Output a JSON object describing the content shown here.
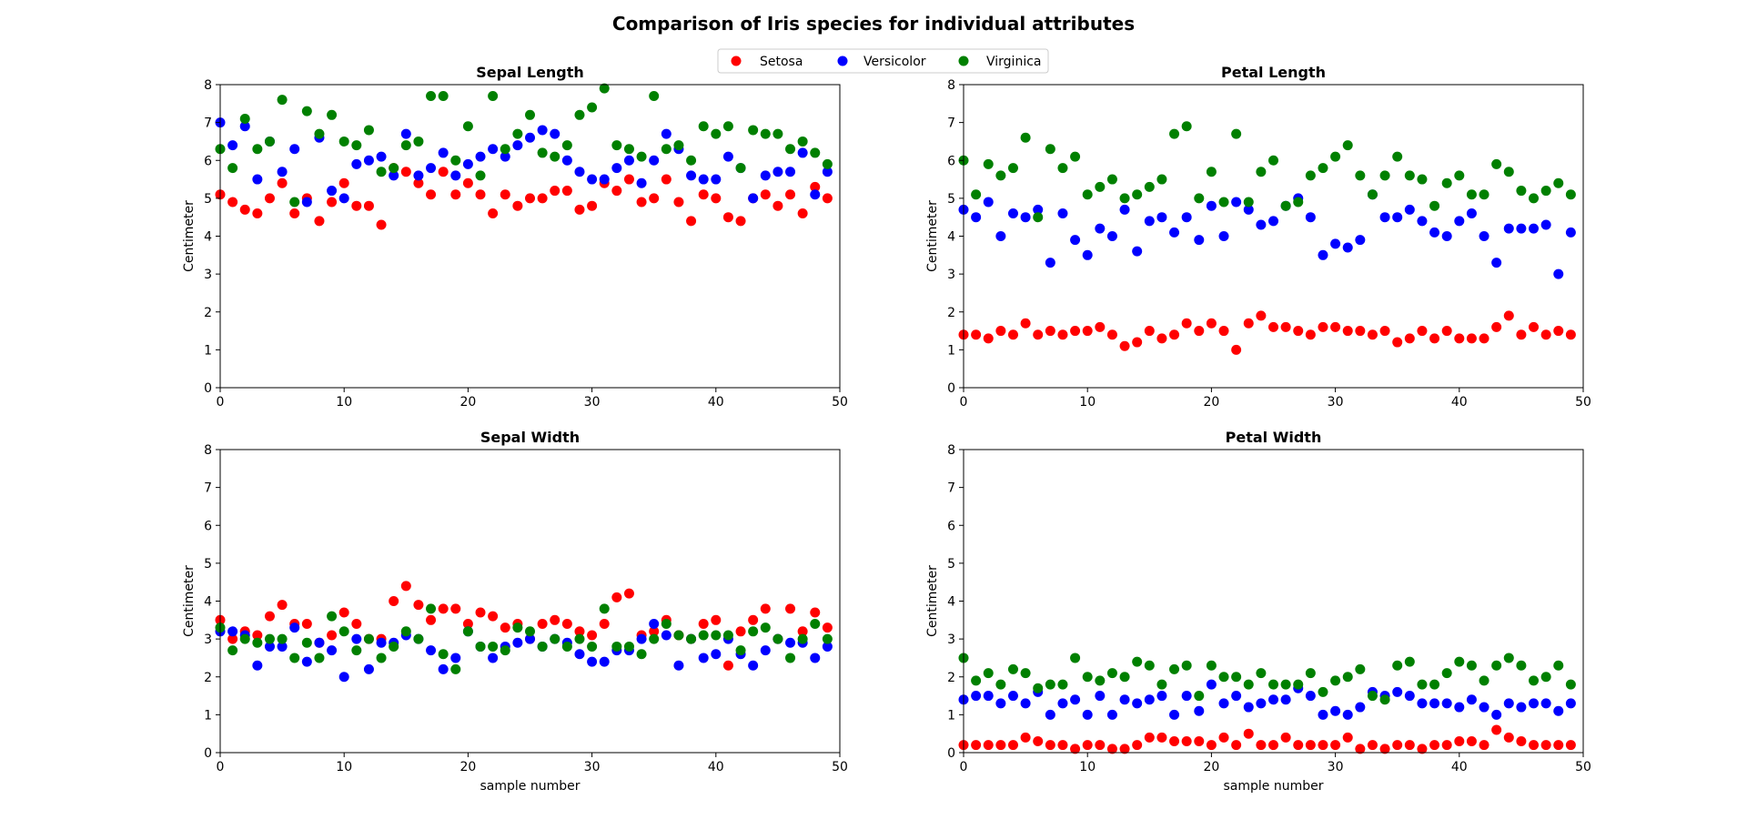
{
  "figure": {
    "title": "Comparison of Iris species for individual attributes"
  },
  "legend": {
    "placement": "top-center",
    "entries": [
      {
        "label": "Setosa",
        "color": "#ff0000"
      },
      {
        "label": "Versicolor",
        "color": "#0000ff"
      },
      {
        "label": "Virginica",
        "color": "#008000"
      }
    ]
  },
  "chart_data": [
    {
      "type": "scatter",
      "title": "Sepal Length",
      "xlabel": "",
      "ylabel": "Centimeter",
      "xlim": [
        0,
        50
      ],
      "ylim": [
        0,
        8
      ],
      "xticks": [
        0,
        10,
        20,
        30,
        40,
        50
      ],
      "yticks": [
        0,
        1,
        2,
        3,
        4,
        5,
        6,
        7,
        8
      ],
      "grid": false,
      "series": [
        {
          "name": "Setosa",
          "color": "#ff0000",
          "values": [
            5.1,
            4.9,
            4.7,
            4.6,
            5.0,
            5.4,
            4.6,
            5.0,
            4.4,
            4.9,
            5.4,
            4.8,
            4.8,
            4.3,
            5.8,
            5.7,
            5.4,
            5.1,
            5.7,
            5.1,
            5.4,
            5.1,
            4.6,
            5.1,
            4.8,
            5.0,
            5.0,
            5.2,
            5.2,
            4.7,
            4.8,
            5.4,
            5.2,
            5.5,
            4.9,
            5.0,
            5.5,
            4.9,
            4.4,
            5.1,
            5.0,
            4.5,
            4.4,
            5.0,
            5.1,
            4.8,
            5.1,
            4.6,
            5.3,
            5.0
          ]
        },
        {
          "name": "Versicolor",
          "color": "#0000ff",
          "values": [
            7.0,
            6.4,
            6.9,
            5.5,
            6.5,
            5.7,
            6.3,
            4.9,
            6.6,
            5.2,
            5.0,
            5.9,
            6.0,
            6.1,
            5.6,
            6.7,
            5.6,
            5.8,
            6.2,
            5.6,
            5.9,
            6.1,
            6.3,
            6.1,
            6.4,
            6.6,
            6.8,
            6.7,
            6.0,
            5.7,
            5.5,
            5.5,
            5.8,
            6.0,
            5.4,
            6.0,
            6.7,
            6.3,
            5.6,
            5.5,
            5.5,
            6.1,
            5.8,
            5.0,
            5.6,
            5.7,
            5.7,
            6.2,
            5.1,
            5.7
          ]
        },
        {
          "name": "Virginica",
          "color": "#008000",
          "values": [
            6.3,
            5.8,
            7.1,
            6.3,
            6.5,
            7.6,
            4.9,
            7.3,
            6.7,
            7.2,
            6.5,
            6.4,
            6.8,
            5.7,
            5.8,
            6.4,
            6.5,
            7.7,
            7.7,
            6.0,
            6.9,
            5.6,
            7.7,
            6.3,
            6.7,
            7.2,
            6.2,
            6.1,
            6.4,
            7.2,
            7.4,
            7.9,
            6.4,
            6.3,
            6.1,
            7.7,
            6.3,
            6.4,
            6.0,
            6.9,
            6.7,
            6.9,
            5.8,
            6.8,
            6.7,
            6.7,
            6.3,
            6.5,
            6.2,
            5.9
          ]
        }
      ]
    },
    {
      "type": "scatter",
      "title": "Petal Length",
      "xlabel": "",
      "ylabel": "Centimeter",
      "xlim": [
        0,
        50
      ],
      "ylim": [
        0,
        8
      ],
      "xticks": [
        0,
        10,
        20,
        30,
        40,
        50
      ],
      "yticks": [
        0,
        1,
        2,
        3,
        4,
        5,
        6,
        7,
        8
      ],
      "grid": false,
      "series": [
        {
          "name": "Setosa",
          "color": "#ff0000",
          "values": [
            1.4,
            1.4,
            1.3,
            1.5,
            1.4,
            1.7,
            1.4,
            1.5,
            1.4,
            1.5,
            1.5,
            1.6,
            1.4,
            1.1,
            1.2,
            1.5,
            1.3,
            1.4,
            1.7,
            1.5,
            1.7,
            1.5,
            1.0,
            1.7,
            1.9,
            1.6,
            1.6,
            1.5,
            1.4,
            1.6,
            1.6,
            1.5,
            1.5,
            1.4,
            1.5,
            1.2,
            1.3,
            1.5,
            1.3,
            1.5,
            1.3,
            1.3,
            1.3,
            1.6,
            1.9,
            1.4,
            1.6,
            1.4,
            1.5,
            1.4
          ]
        },
        {
          "name": "Versicolor",
          "color": "#0000ff",
          "values": [
            4.7,
            4.5,
            4.9,
            4.0,
            4.6,
            4.5,
            4.7,
            3.3,
            4.6,
            3.9,
            3.5,
            4.2,
            4.0,
            4.7,
            3.6,
            4.4,
            4.5,
            4.1,
            4.5,
            3.9,
            4.8,
            4.0,
            4.9,
            4.7,
            4.3,
            4.4,
            4.8,
            5.0,
            4.5,
            3.5,
            3.8,
            3.7,
            3.9,
            5.1,
            4.5,
            4.5,
            4.7,
            4.4,
            4.1,
            4.0,
            4.4,
            4.6,
            4.0,
            3.3,
            4.2,
            4.2,
            4.2,
            4.3,
            3.0,
            4.1
          ]
        },
        {
          "name": "Virginica",
          "color": "#008000",
          "values": [
            6.0,
            5.1,
            5.9,
            5.6,
            5.8,
            6.6,
            4.5,
            6.3,
            5.8,
            6.1,
            5.1,
            5.3,
            5.5,
            5.0,
            5.1,
            5.3,
            5.5,
            6.7,
            6.9,
            5.0,
            5.7,
            4.9,
            6.7,
            4.9,
            5.7,
            6.0,
            4.8,
            4.9,
            5.6,
            5.8,
            6.1,
            6.4,
            5.6,
            5.1,
            5.6,
            6.1,
            5.6,
            5.5,
            4.8,
            5.4,
            5.6,
            5.1,
            5.1,
            5.9,
            5.7,
            5.2,
            5.0,
            5.2,
            5.4,
            5.1
          ]
        }
      ]
    },
    {
      "type": "scatter",
      "title": "Sepal Width",
      "xlabel": "sample number",
      "ylabel": "Centimeter",
      "xlim": [
        0,
        50
      ],
      "ylim": [
        0,
        8
      ],
      "xticks": [
        0,
        10,
        20,
        30,
        40,
        50
      ],
      "yticks": [
        0,
        1,
        2,
        3,
        4,
        5,
        6,
        7,
        8
      ],
      "grid": false,
      "series": [
        {
          "name": "Setosa",
          "color": "#ff0000",
          "values": [
            3.5,
            3.0,
            3.2,
            3.1,
            3.6,
            3.9,
            3.4,
            3.4,
            2.9,
            3.1,
            3.7,
            3.4,
            3.0,
            3.0,
            4.0,
            4.4,
            3.9,
            3.5,
            3.8,
            3.8,
            3.4,
            3.7,
            3.6,
            3.3,
            3.4,
            3.0,
            3.4,
            3.5,
            3.4,
            3.2,
            3.1,
            3.4,
            4.1,
            4.2,
            3.1,
            3.2,
            3.5,
            3.1,
            3.0,
            3.4,
            3.5,
            2.3,
            3.2,
            3.5,
            3.8,
            3.0,
            3.8,
            3.2,
            3.7,
            3.3
          ]
        },
        {
          "name": "Versicolor",
          "color": "#0000ff",
          "values": [
            3.2,
            3.2,
            3.1,
            2.3,
            2.8,
            2.8,
            3.3,
            2.4,
            2.9,
            2.7,
            2.0,
            3.0,
            2.2,
            2.9,
            2.9,
            3.1,
            3.0,
            2.7,
            2.2,
            2.5,
            3.2,
            2.8,
            2.5,
            2.8,
            2.9,
            3.0,
            2.8,
            3.0,
            2.9,
            2.6,
            2.4,
            2.4,
            2.7,
            2.7,
            3.0,
            3.4,
            3.1,
            2.3,
            3.0,
            2.5,
            2.6,
            3.0,
            2.6,
            2.3,
            2.7,
            3.0,
            2.9,
            2.9,
            2.5,
            2.8
          ]
        },
        {
          "name": "Virginica",
          "color": "#008000",
          "values": [
            3.3,
            2.7,
            3.0,
            2.9,
            3.0,
            3.0,
            2.5,
            2.9,
            2.5,
            3.6,
            3.2,
            2.7,
            3.0,
            2.5,
            2.8,
            3.2,
            3.0,
            3.8,
            2.6,
            2.2,
            3.2,
            2.8,
            2.8,
            2.7,
            3.3,
            3.2,
            2.8,
            3.0,
            2.8,
            3.0,
            2.8,
            3.8,
            2.8,
            2.8,
            2.6,
            3.0,
            3.4,
            3.1,
            3.0,
            3.1,
            3.1,
            3.1,
            2.7,
            3.2,
            3.3,
            3.0,
            2.5,
            3.0,
            3.4,
            3.0
          ]
        }
      ]
    },
    {
      "type": "scatter",
      "title": "Petal Width",
      "xlabel": "sample number",
      "ylabel": "Centimeter",
      "xlim": [
        0,
        50
      ],
      "ylim": [
        0,
        8
      ],
      "xticks": [
        0,
        10,
        20,
        30,
        40,
        50
      ],
      "yticks": [
        0,
        1,
        2,
        3,
        4,
        5,
        6,
        7,
        8
      ],
      "grid": false,
      "series": [
        {
          "name": "Setosa",
          "color": "#ff0000",
          "values": [
            0.2,
            0.2,
            0.2,
            0.2,
            0.2,
            0.4,
            0.3,
            0.2,
            0.2,
            0.1,
            0.2,
            0.2,
            0.1,
            0.1,
            0.2,
            0.4,
            0.4,
            0.3,
            0.3,
            0.3,
            0.2,
            0.4,
            0.2,
            0.5,
            0.2,
            0.2,
            0.4,
            0.2,
            0.2,
            0.2,
            0.2,
            0.4,
            0.1,
            0.2,
            0.1,
            0.2,
            0.2,
            0.1,
            0.2,
            0.2,
            0.3,
            0.3,
            0.2,
            0.6,
            0.4,
            0.3,
            0.2,
            0.2,
            0.2,
            0.2
          ]
        },
        {
          "name": "Versicolor",
          "color": "#0000ff",
          "values": [
            1.4,
            1.5,
            1.5,
            1.3,
            1.5,
            1.3,
            1.6,
            1.0,
            1.3,
            1.4,
            1.0,
            1.5,
            1.0,
            1.4,
            1.3,
            1.4,
            1.5,
            1.0,
            1.5,
            1.1,
            1.8,
            1.3,
            1.5,
            1.2,
            1.3,
            1.4,
            1.4,
            1.7,
            1.5,
            1.0,
            1.1,
            1.0,
            1.2,
            1.6,
            1.5,
            1.6,
            1.5,
            1.3,
            1.3,
            1.3,
            1.2,
            1.4,
            1.2,
            1.0,
            1.3,
            1.2,
            1.3,
            1.3,
            1.1,
            1.3
          ]
        },
        {
          "name": "Virginica",
          "color": "#008000",
          "values": [
            2.5,
            1.9,
            2.1,
            1.8,
            2.2,
            2.1,
            1.7,
            1.8,
            1.8,
            2.5,
            2.0,
            1.9,
            2.1,
            2.0,
            2.4,
            2.3,
            1.8,
            2.2,
            2.3,
            1.5,
            2.3,
            2.0,
            2.0,
            1.8,
            2.1,
            1.8,
            1.8,
            1.8,
            2.1,
            1.6,
            1.9,
            2.0,
            2.2,
            1.5,
            1.4,
            2.3,
            2.4,
            1.8,
            1.8,
            2.1,
            2.4,
            2.3,
            1.9,
            2.3,
            2.5,
            2.3,
            1.9,
            2.0,
            2.3,
            1.8
          ]
        }
      ]
    }
  ]
}
